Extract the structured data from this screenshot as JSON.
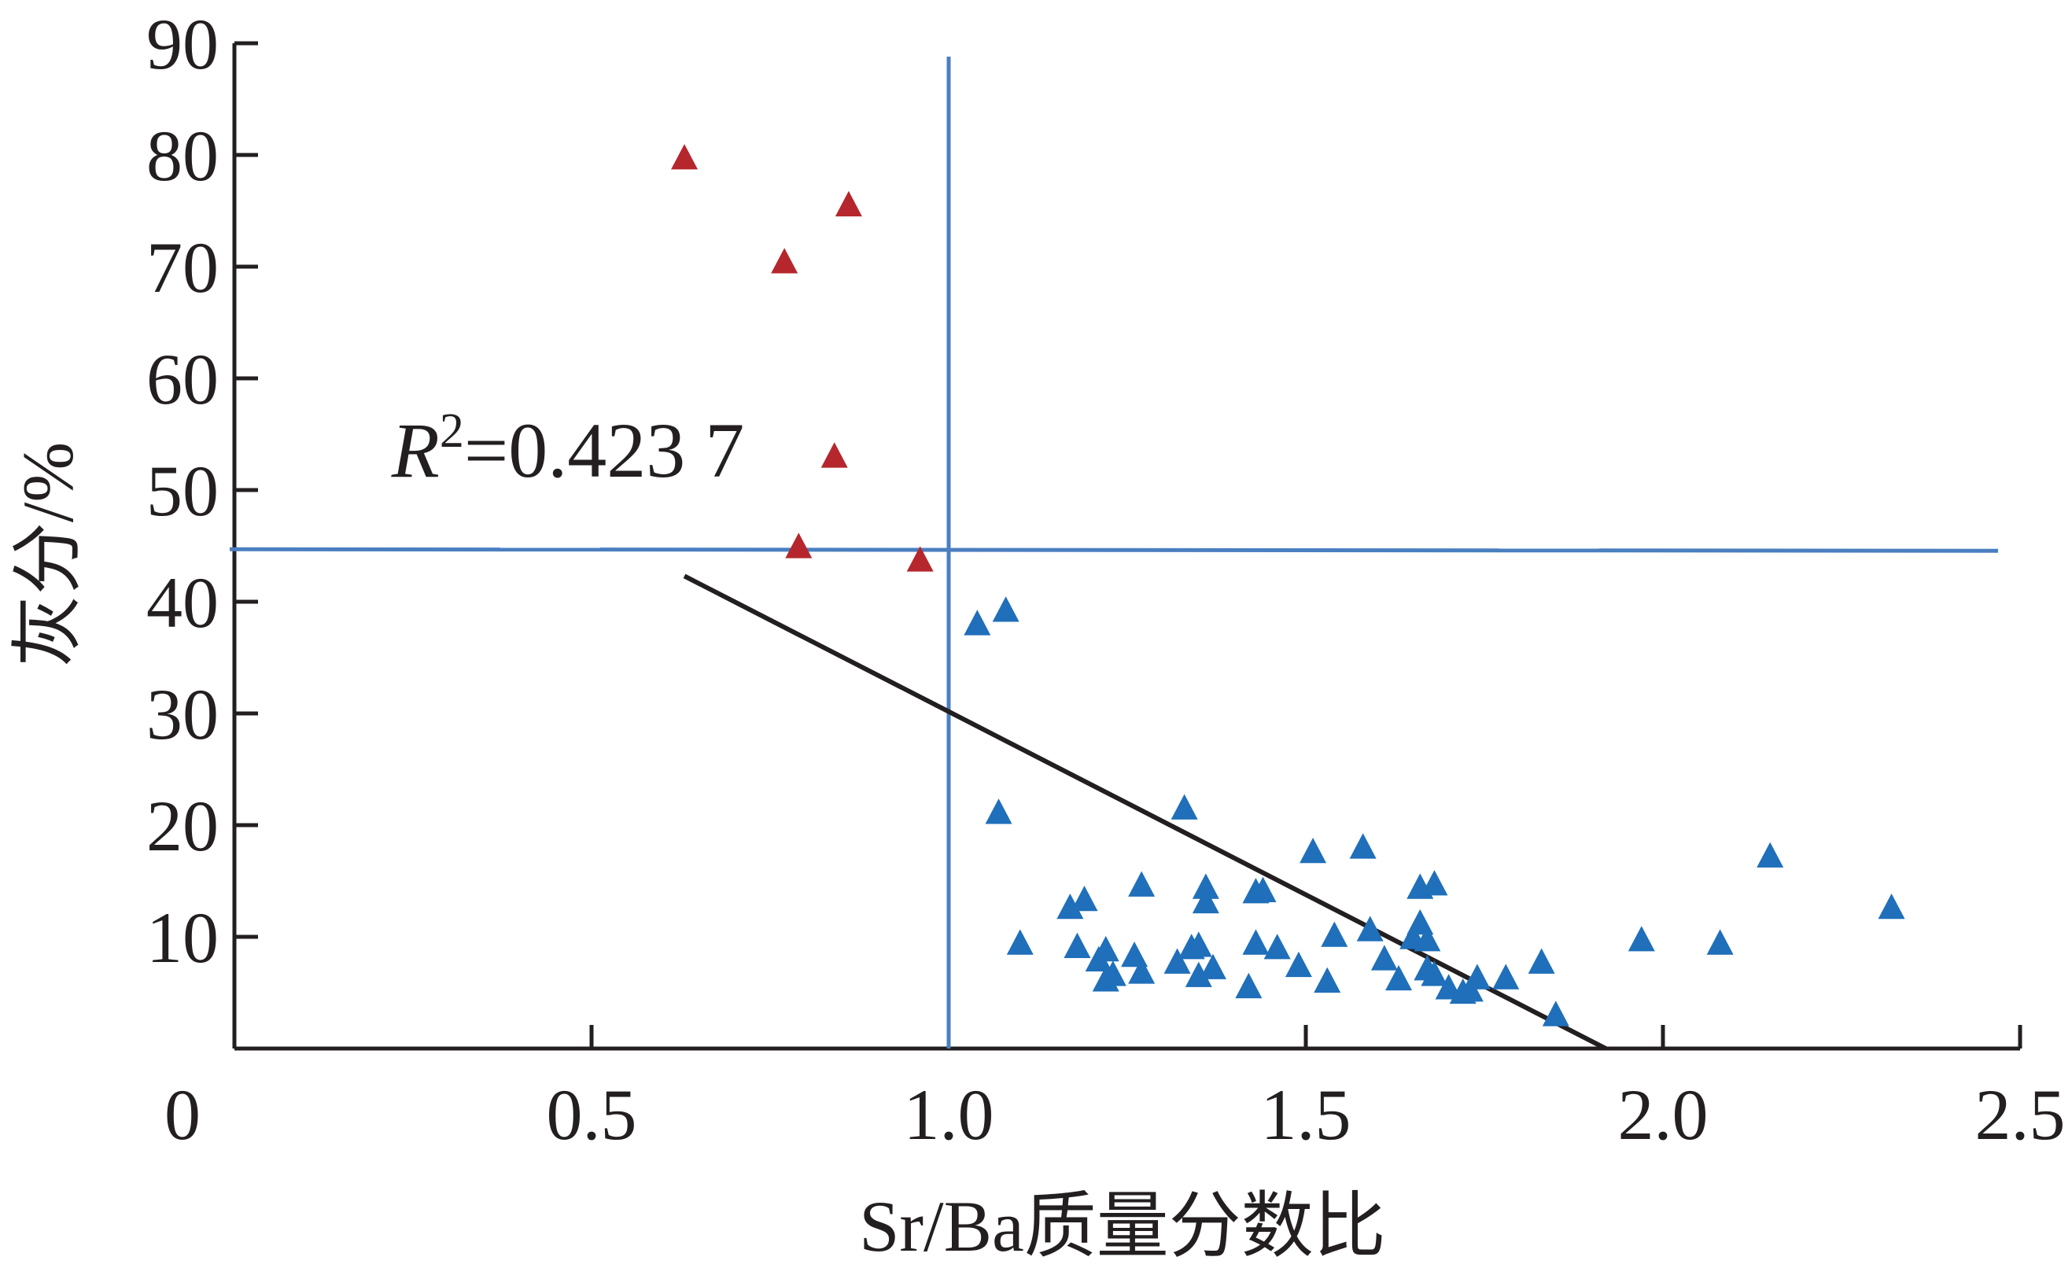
{
  "chart_data": {
    "type": "scatter",
    "xlabel": "Sr/Ba质量分数比",
    "ylabel": "灰分/%",
    "xlim": [
      0,
      2.5
    ],
    "ylim": [
      0,
      90
    ],
    "x_ticks": [
      0,
      0.5,
      1.0,
      1.5,
      2.0,
      2.5
    ],
    "x_tick_labels": [
      "0",
      "0.5",
      "1.0",
      "1.5",
      "2.0",
      "2.5"
    ],
    "y_ticks": [
      10,
      20,
      30,
      40,
      50,
      60,
      70,
      80,
      90
    ],
    "y_tick_labels": [
      "10",
      "20",
      "30",
      "40",
      "50",
      "60",
      "70",
      "80",
      "90"
    ],
    "grid": false,
    "colors": {
      "series_high_ash": "#b5272d",
      "series_low_ash": "#1f6fba",
      "reference_lines": "#4a7fc0",
      "fit_line": "#231f20"
    },
    "series": [
      {
        "marker": "triangle",
        "color": "#b5272d",
        "points": [
          [
            0.63,
            79.6
          ],
          [
            0.86,
            75.4
          ],
          [
            0.77,
            70.3
          ],
          [
            0.84,
            52.9
          ],
          [
            0.79,
            44.8
          ],
          [
            0.96,
            43.6
          ]
        ]
      },
      {
        "marker": "triangle",
        "color": "#1f6fba",
        "points": [
          [
            1.04,
            37.9
          ],
          [
            1.08,
            39.1
          ],
          [
            1.07,
            21.0
          ],
          [
            1.1,
            9.3
          ],
          [
            1.17,
            12.5
          ],
          [
            1.19,
            13.2
          ],
          [
            1.18,
            9.0
          ],
          [
            1.21,
            7.8
          ],
          [
            1.22,
            8.7
          ],
          [
            1.22,
            6.0
          ],
          [
            1.23,
            6.5
          ],
          [
            1.26,
            8.2
          ],
          [
            1.27,
            14.5
          ],
          [
            1.27,
            6.7
          ],
          [
            1.32,
            7.6
          ],
          [
            1.33,
            21.4
          ],
          [
            1.34,
            8.9
          ],
          [
            1.35,
            9.1
          ],
          [
            1.35,
            6.4
          ],
          [
            1.36,
            14.3
          ],
          [
            1.36,
            13.0
          ],
          [
            1.37,
            7.1
          ],
          [
            1.42,
            5.4
          ],
          [
            1.43,
            13.9
          ],
          [
            1.43,
            9.3
          ],
          [
            1.44,
            14.0
          ],
          [
            1.46,
            8.9
          ],
          [
            1.49,
            7.3
          ],
          [
            1.51,
            17.5
          ],
          [
            1.53,
            5.9
          ],
          [
            1.54,
            10.0
          ],
          [
            1.58,
            17.9
          ],
          [
            1.59,
            10.5
          ],
          [
            1.61,
            7.9
          ],
          [
            1.63,
            6.1
          ],
          [
            1.65,
            9.8
          ],
          [
            1.66,
            14.3
          ],
          [
            1.66,
            11.1
          ],
          [
            1.67,
            9.6
          ],
          [
            1.67,
            7.0
          ],
          [
            1.68,
            14.6
          ],
          [
            1.68,
            6.5
          ],
          [
            1.7,
            5.3
          ],
          [
            1.72,
            4.9
          ],
          [
            1.73,
            5.1
          ],
          [
            1.74,
            6.2
          ],
          [
            1.78,
            6.2
          ],
          [
            1.83,
            7.6
          ],
          [
            1.85,
            2.9
          ],
          [
            1.97,
            9.6
          ],
          [
            2.08,
            9.3
          ],
          [
            2.15,
            17.1
          ],
          [
            2.32,
            12.5
          ]
        ]
      }
    ],
    "reference_lines": {
      "vertical_x": 1.0,
      "horizontal_y": 44.7
    },
    "fit_line": {
      "x": [
        0.63,
        1.92
      ],
      "y": [
        42.3,
        0
      ]
    },
    "annotation": {
      "r_symbol": "R",
      "superscript": "2",
      "value": "=0.423 7",
      "x": 0.22,
      "y": 54
    }
  }
}
